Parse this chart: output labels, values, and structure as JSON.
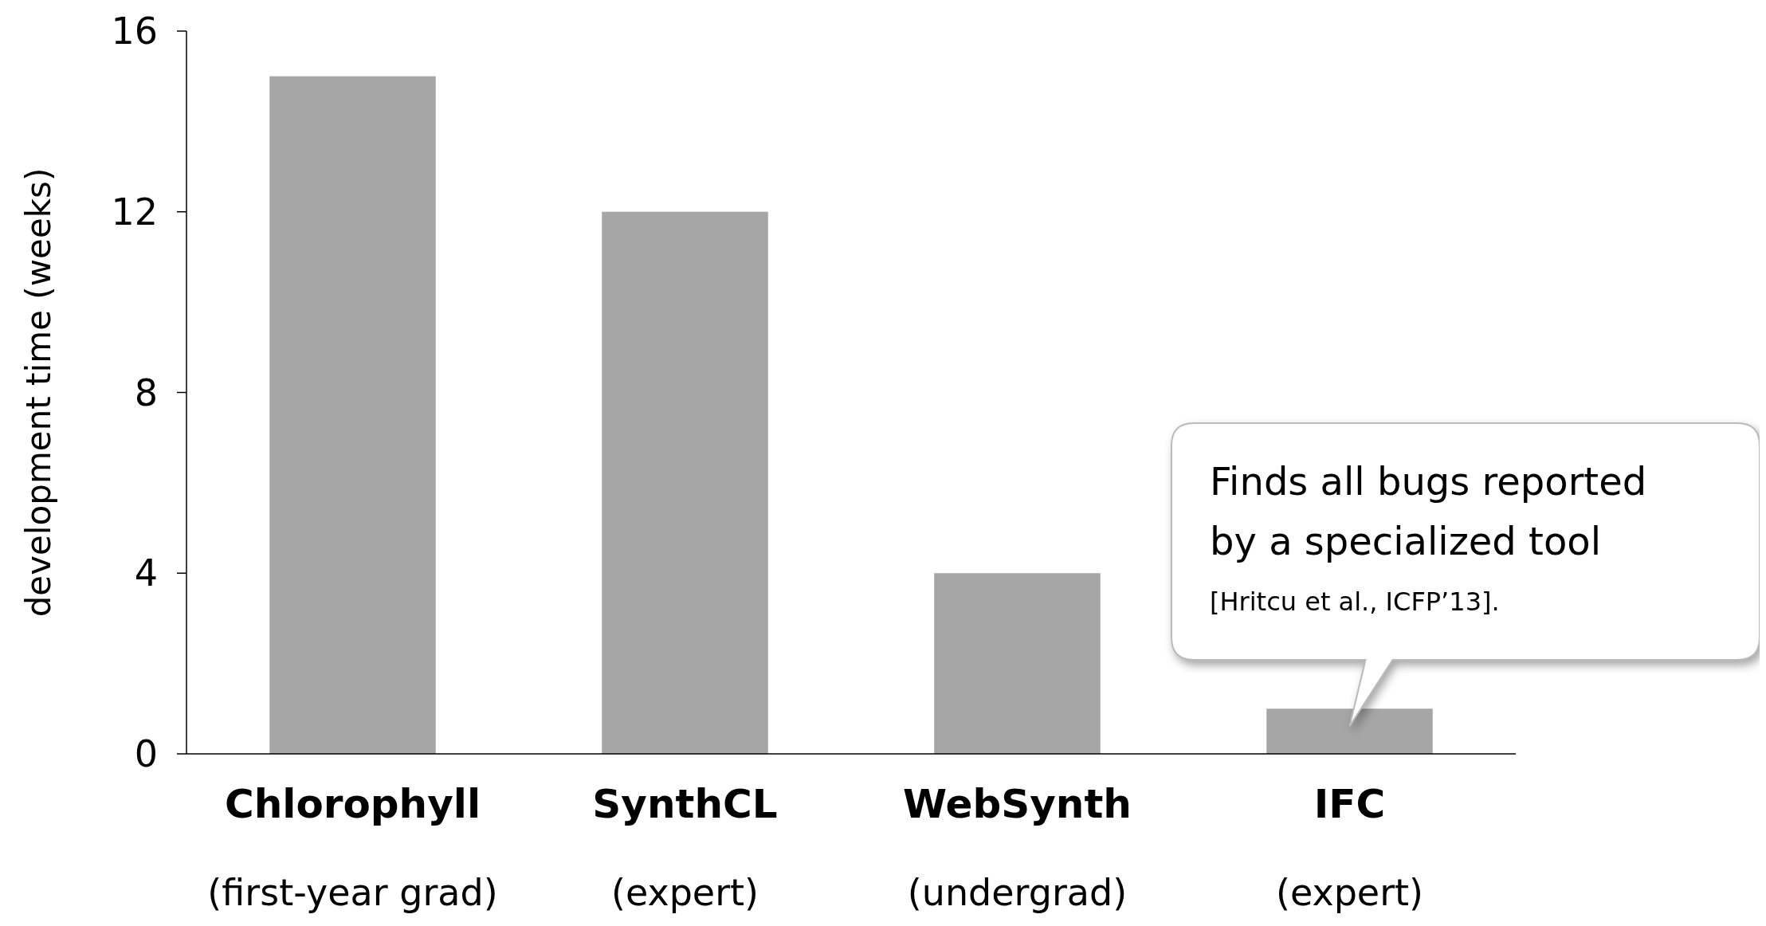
{
  "chart_data": {
    "type": "bar",
    "ylabel": "development time (weeks)",
    "categories": [
      "Chlorophyll\n(first-year grad)",
      "SynthCL\n(expert)",
      "WebSynth\n(undergrad)",
      "IFC\n(expert)"
    ],
    "values": [
      15,
      12,
      4,
      1
    ],
    "color": "#a6a6a6",
    "ylim": [
      0,
      16
    ],
    "yticks": [
      0,
      4,
      8,
      12,
      16
    ],
    "grid": false,
    "annotations": [
      {
        "text": "Finds all bugs reported\nby a specialized tool\n[Hritcu et al., ICFP’13].",
        "x": "IFC\n(expert)",
        "y": 1
      }
    ]
  }
}
